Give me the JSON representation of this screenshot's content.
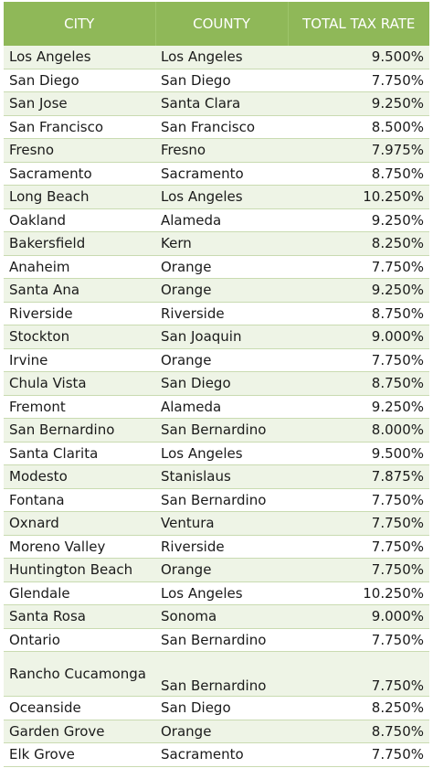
{
  "headers": {
    "city": "CITY",
    "county": "COUNTY",
    "rate": "TOTAL TAX RATE"
  },
  "rows": [
    {
      "city": "Los Angeles",
      "county": "Los Angeles",
      "rate": "9.500%"
    },
    {
      "city": "San Diego",
      "county": "San Diego",
      "rate": "7.750%"
    },
    {
      "city": "San Jose",
      "county": "Santa Clara",
      "rate": "9.250%"
    },
    {
      "city": "San Francisco",
      "county": "San Francisco",
      "rate": "8.500%"
    },
    {
      "city": "Fresno",
      "county": "Fresno",
      "rate": "7.975%"
    },
    {
      "city": "Sacramento",
      "county": "Sacramento",
      "rate": "8.750%"
    },
    {
      "city": "Long Beach",
      "county": "Los Angeles",
      "rate": "10.250%"
    },
    {
      "city": "Oakland",
      "county": "Alameda",
      "rate": "9.250%"
    },
    {
      "city": "Bakersfield",
      "county": "Kern",
      "rate": "8.250%"
    },
    {
      "city": "Anaheim",
      "county": "Orange",
      "rate": "7.750%"
    },
    {
      "city": "Santa Ana",
      "county": "Orange",
      "rate": "9.250%"
    },
    {
      "city": "Riverside",
      "county": "Riverside",
      "rate": "8.750%"
    },
    {
      "city": "Stockton",
      "county": "San Joaquin",
      "rate": "9.000%"
    },
    {
      "city": "Irvine",
      "county": "Orange",
      "rate": "7.750%"
    },
    {
      "city": "Chula Vista",
      "county": "San Diego",
      "rate": "8.750%"
    },
    {
      "city": "Fremont",
      "county": "Alameda",
      "rate": "9.250%"
    },
    {
      "city": "San Bernardino",
      "county": "San Bernardino",
      "rate": "8.000%"
    },
    {
      "city": "Santa Clarita",
      "county": "Los Angeles",
      "rate": "9.500%"
    },
    {
      "city": "Modesto",
      "county": "Stanislaus",
      "rate": "7.875%"
    },
    {
      "city": "Fontana",
      "county": "San Bernardino",
      "rate": "7.750%"
    },
    {
      "city": "Oxnard",
      "county": "Ventura",
      "rate": "7.750%"
    },
    {
      "city": "Moreno Valley",
      "county": "Riverside",
      "rate": "7.750%"
    },
    {
      "city": "Huntington Beach",
      "county": "Orange",
      "rate": "7.750%"
    },
    {
      "city": "Glendale",
      "county": "Los Angeles",
      "rate": "10.250%"
    },
    {
      "city": "Santa Rosa",
      "county": "Sonoma",
      "rate": "9.000%"
    },
    {
      "city": "Ontario",
      "county": "San Bernardino",
      "rate": "7.750%"
    },
    {
      "city": "Rancho Cucamonga",
      "county": "San Bernardino",
      "rate": "7.750%"
    },
    {
      "city": "Oceanside",
      "county": "San Diego",
      "rate": "8.250%"
    },
    {
      "city": "Garden Grove",
      "county": "Orange",
      "rate": "8.750%"
    },
    {
      "city": "Elk Grove",
      "county": "Sacramento",
      "rate": "7.750%"
    }
  ]
}
